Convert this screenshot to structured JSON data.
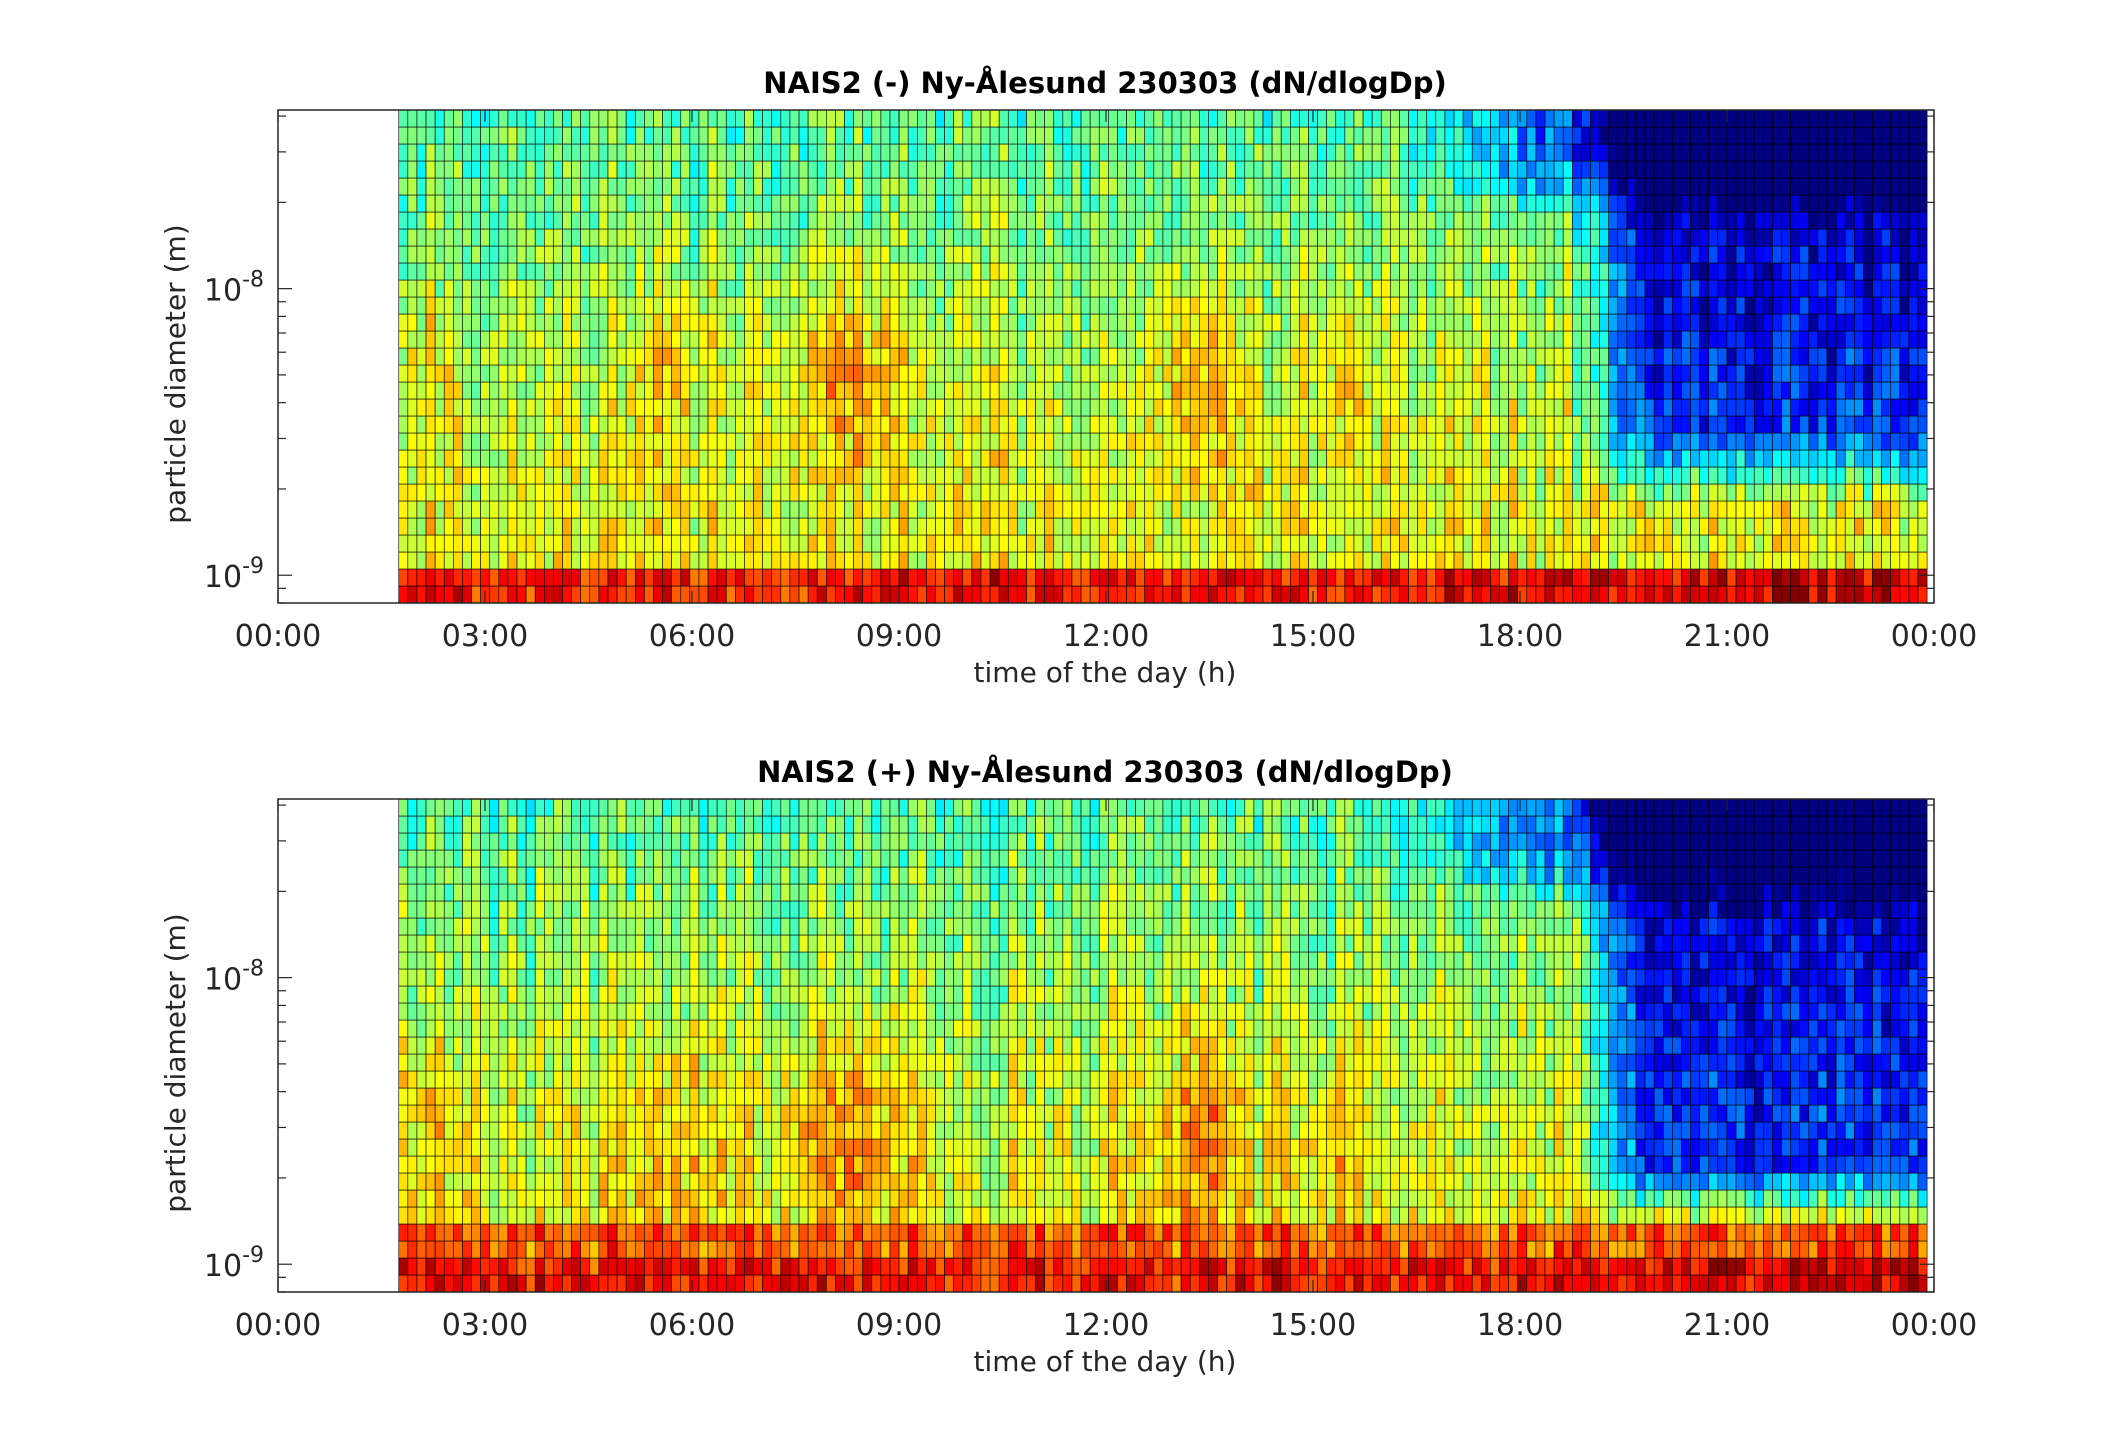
{
  "chart_data": [
    {
      "type": "heatmap",
      "title": "NAIS2 (-) Ny-Ålesund 230303 (dN/dlogDp)",
      "xlabel": "time of the day (h)",
      "ylabel": "particle diameter (m)",
      "y_scale": "log",
      "xlim": [
        0,
        24
      ],
      "ylim": [
        8e-10,
        4.2e-08
      ],
      "data_start_hour": 1.75,
      "x_ticks": [
        "00:00",
        "03:00",
        "06:00",
        "09:00",
        "12:00",
        "15:00",
        "18:00",
        "21:00",
        "00:00"
      ],
      "y_ticks": [
        {
          "base": "10",
          "exp": "-9"
        },
        {
          "base": "10",
          "exp": "-8"
        }
      ],
      "colormap": "jet",
      "color_trends": {
        "lowest_size_bins": "red-orange throughout the day",
        "mid_sizes_before_18h": "yellow-orange with red bands near 07:30-09:00 and 13:00-14:00",
        "large_sizes_after_19h": "dark blue (low concentration)"
      },
      "colors": {
        "low": "#00008f",
        "mid": "#7fff7f",
        "high": "#ff0000"
      }
    },
    {
      "type": "heatmap",
      "title": "NAIS2 (+) Ny-Ålesund 230303 (dN/dlogDp)",
      "xlabel": "time of the day (h)",
      "ylabel": "particle diameter (m)",
      "y_scale": "log",
      "xlim": [
        0,
        24
      ],
      "ylim": [
        8e-10,
        4.2e-08
      ],
      "data_start_hour": 1.75,
      "x_ticks": [
        "00:00",
        "03:00",
        "06:00",
        "09:00",
        "12:00",
        "15:00",
        "18:00",
        "21:00",
        "00:00"
      ],
      "y_ticks": [
        {
          "base": "10",
          "exp": "-9"
        },
        {
          "base": "10",
          "exp": "-8"
        }
      ],
      "colormap": "jet",
      "color_trends": {
        "lowest_size_bins": "orange-red throughout the day",
        "mid_sizes_before_18h": "yellow-orange with red bands near 13:00-14:00",
        "large_sizes_after_19h": "dark blue (low concentration)"
      },
      "colors": {
        "low": "#00008f",
        "mid": "#7fff7f",
        "high": "#ff0000"
      }
    }
  ]
}
